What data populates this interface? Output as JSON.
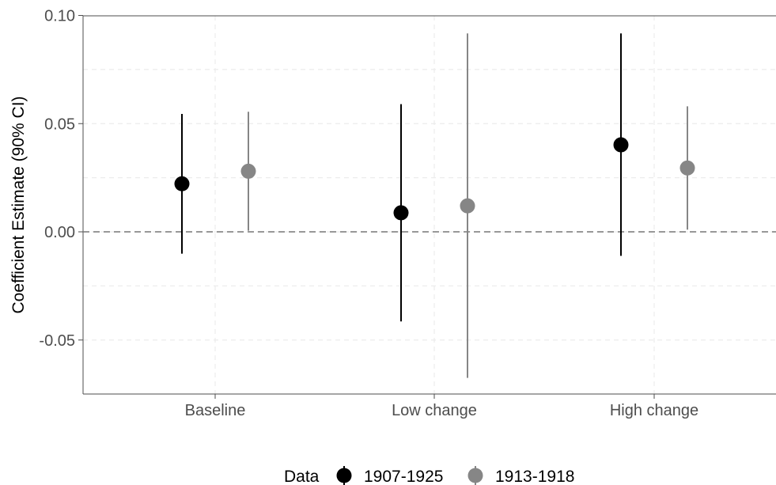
{
  "chart_data": {
    "type": "scatter",
    "subtype": "pointrange",
    "title": "",
    "xlabel": "",
    "ylabel": "Coefficient Estimate (90% CI)",
    "categories": [
      "Baseline",
      "Low change",
      "High change"
    ],
    "ylim": [
      -0.075,
      0.1
    ],
    "yticks": [
      0.1,
      0.05,
      0.0,
      -0.05
    ],
    "ytick_labels": [
      "0.10",
      "0.05",
      "0.00",
      "-0.05"
    ],
    "reference_line": {
      "y": 0.0,
      "style": "dashed"
    },
    "grid": "dashed-light",
    "legend": {
      "title": "Data",
      "position": "bottom"
    },
    "series": [
      {
        "name": "1907-1925",
        "color": "#000000",
        "estimates": [
          0.0222,
          0.0088,
          0.0402
        ],
        "ci_low": [
          -0.0101,
          -0.0414,
          -0.0111
        ],
        "ci_high": [
          0.0545,
          0.059,
          0.0917
        ]
      },
      {
        "name": "1913-1918",
        "color": "#868686",
        "estimates": [
          0.028,
          0.012,
          0.0295
        ],
        "ci_low": [
          0.0005,
          -0.0675,
          0.001
        ],
        "ci_high": [
          0.0555,
          0.0917,
          0.058
        ]
      }
    ]
  }
}
